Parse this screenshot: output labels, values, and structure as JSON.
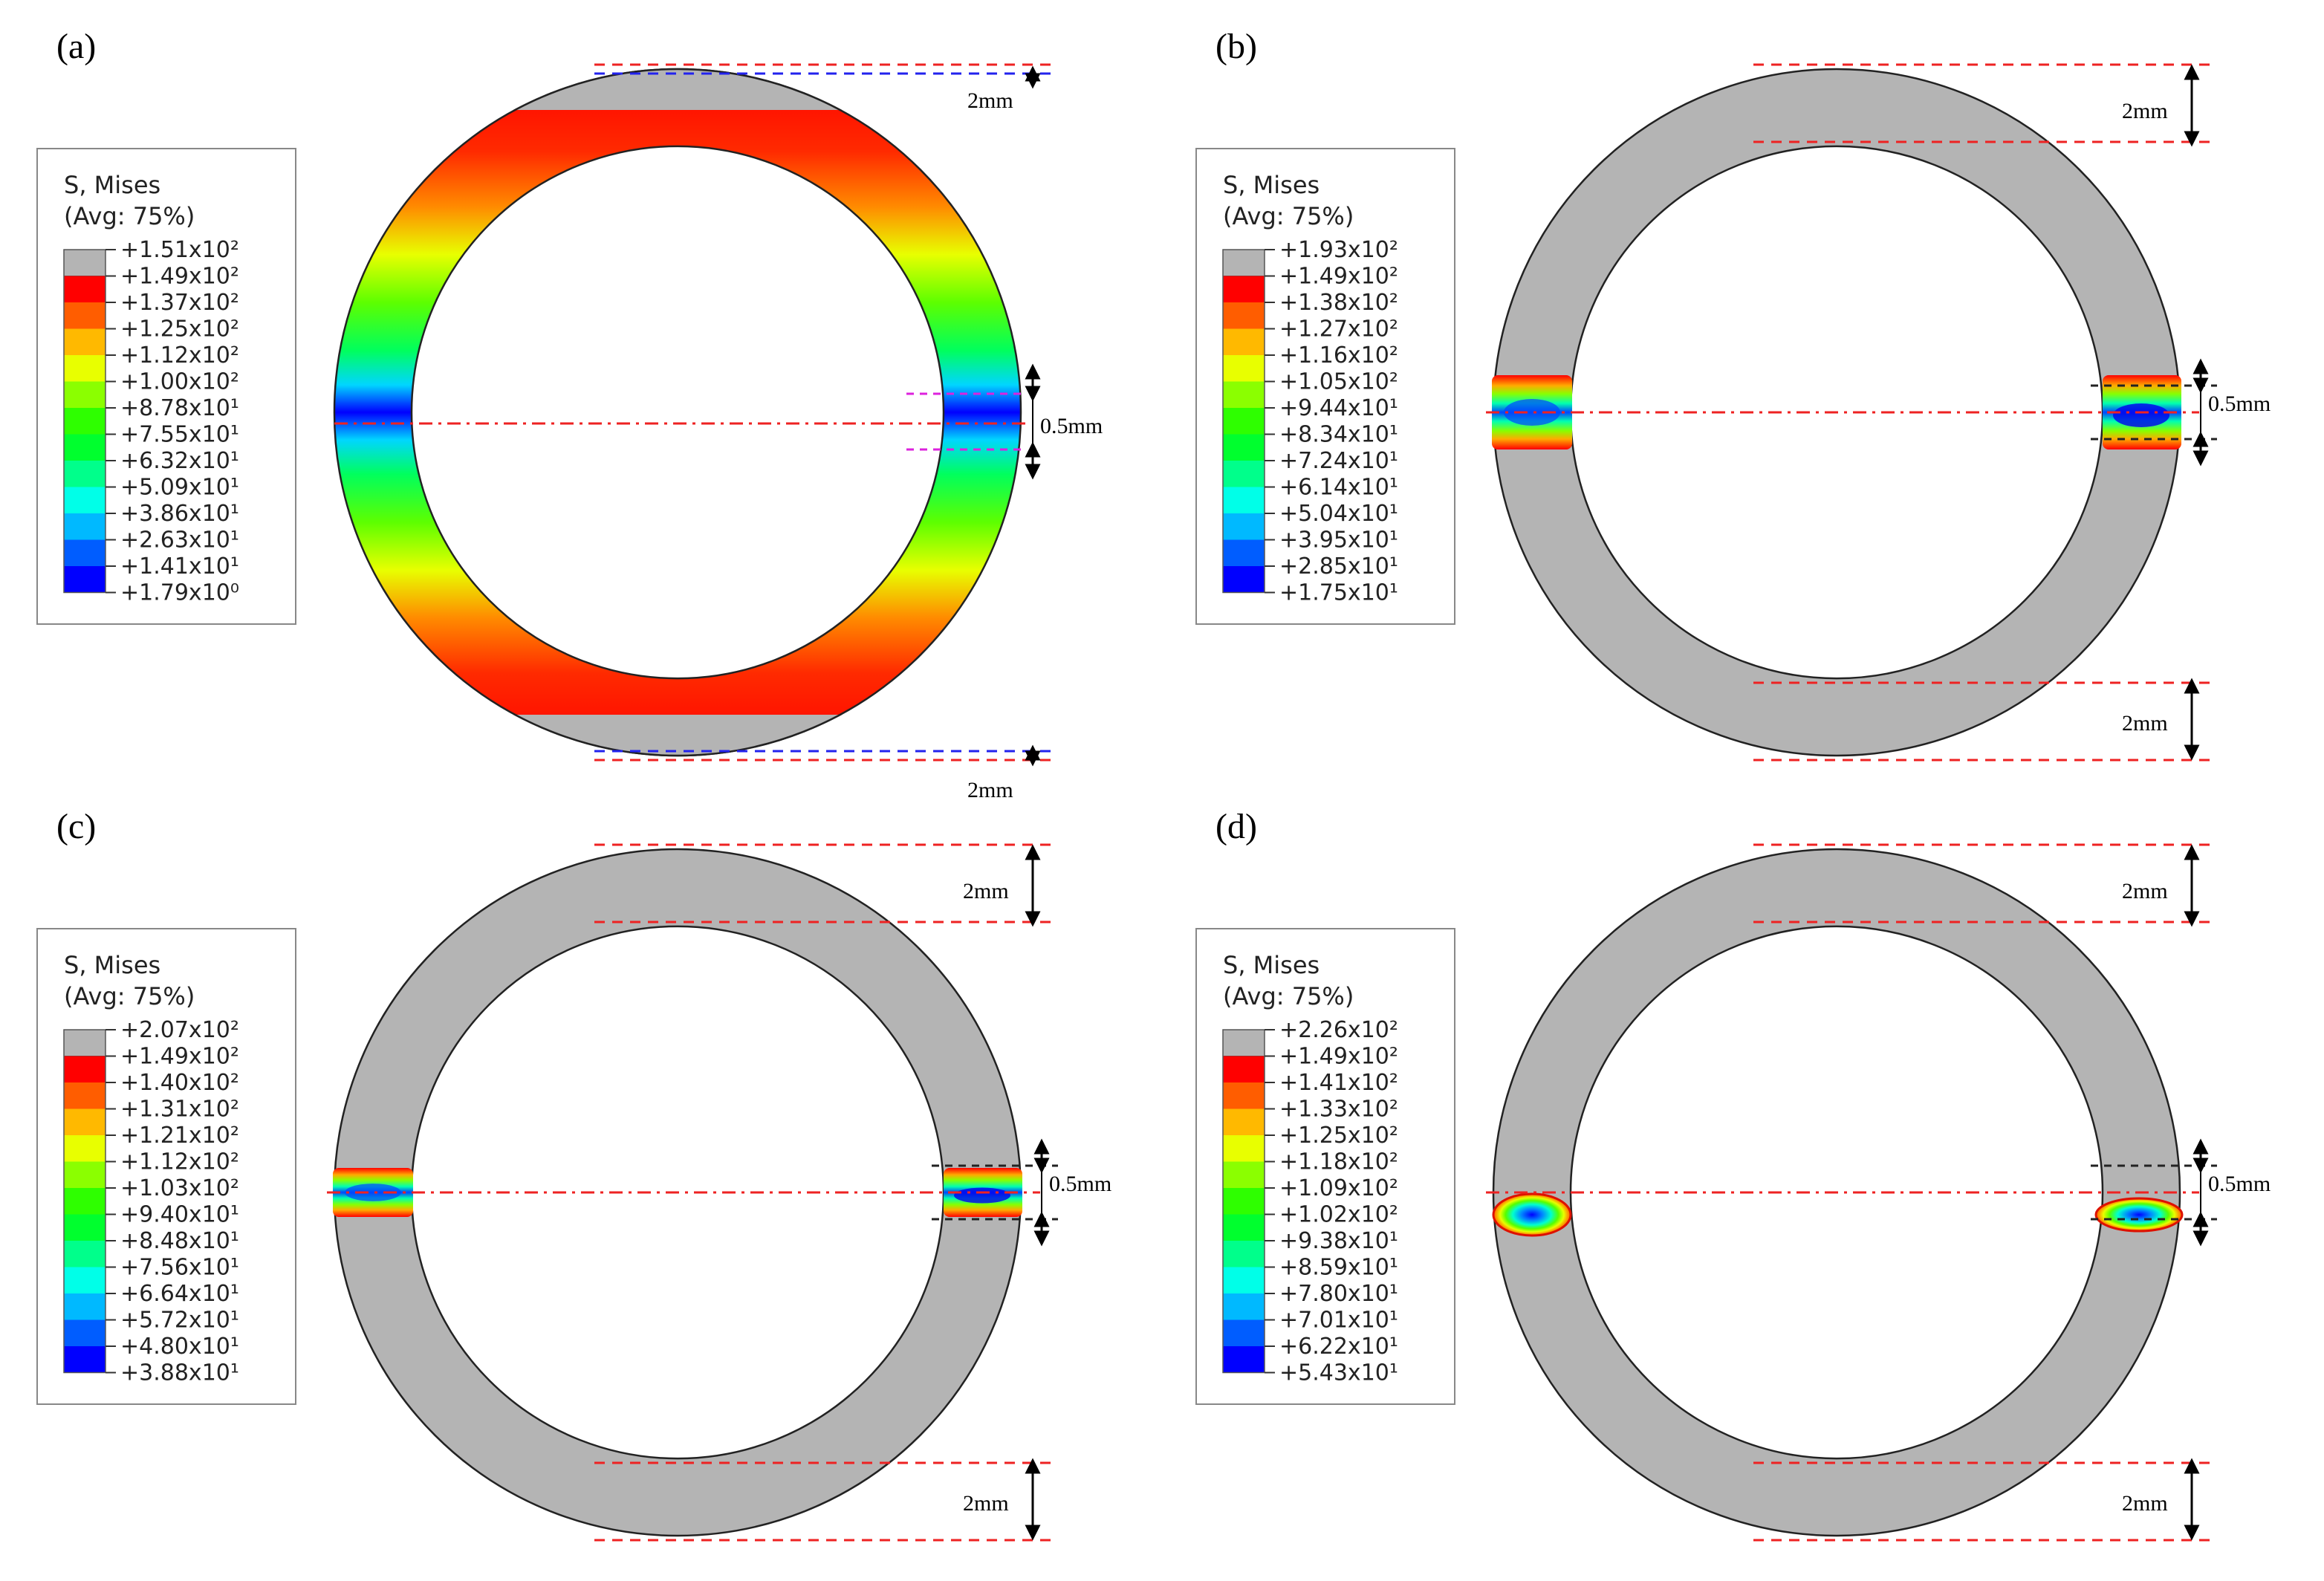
{
  "figure": {
    "legend_title_line1": "S, Mises",
    "legend_title_line2": "(Avg: 75%)",
    "dim_large": "2mm",
    "dim_small": "0.5mm",
    "colors": {
      "ring_gray": "#b4b4b4",
      "red_guide": "#ee2222",
      "blue_guide": "#2222ee",
      "magenta_guide": "#dd22dd",
      "black_guide": "#222222",
      "colormap": [
        "#0000ff",
        "#005dff",
        "#00b9ff",
        "#00ffe8",
        "#00ff8b",
        "#00ff2e",
        "#2eff00",
        "#8bff00",
        "#e8ff00",
        "#ffb900",
        "#ff5d00",
        "#ff0000"
      ]
    },
    "panels": [
      {
        "label": "(a)",
        "legend": [
          "+1.51x10²",
          "+1.49x10²",
          "+1.37x10²",
          "+1.25x10²",
          "+1.12x10²",
          "+1.00x10²",
          "+8.78x10¹",
          "+7.55x10¹",
          "+6.32x10¹",
          "+5.09x10¹",
          "+3.86x10¹",
          "+2.63x10¹",
          "+1.41x10¹",
          "+1.79x10⁰"
        ]
      },
      {
        "label": "(b)",
        "legend": [
          "+1.93x10²",
          "+1.49x10²",
          "+1.38x10²",
          "+1.27x10²",
          "+1.16x10²",
          "+1.05x10²",
          "+9.44x10¹",
          "+8.34x10¹",
          "+7.24x10¹",
          "+6.14x10¹",
          "+5.04x10¹",
          "+3.95x10¹",
          "+2.85x10¹",
          "+1.75x10¹"
        ]
      },
      {
        "label": "(c)",
        "legend": [
          "+2.07x10²",
          "+1.49x10²",
          "+1.40x10²",
          "+1.31x10²",
          "+1.21x10²",
          "+1.12x10²",
          "+1.03x10²",
          "+9.40x10¹",
          "+8.48x10¹",
          "+7.56x10¹",
          "+6.64x10¹",
          "+5.72x10¹",
          "+4.80x10¹",
          "+3.88x10¹"
        ]
      },
      {
        "label": "(d)",
        "legend": [
          "+2.26x10²",
          "+1.49x10²",
          "+1.41x10²",
          "+1.33x10²",
          "+1.25x10²",
          "+1.18x10²",
          "+1.09x10²",
          "+1.02x10²",
          "+9.38x10¹",
          "+8.59x10¹",
          "+7.80x10¹",
          "+7.01x10¹",
          "+6.22x10¹",
          "+5.43x10¹"
        ]
      }
    ]
  }
}
